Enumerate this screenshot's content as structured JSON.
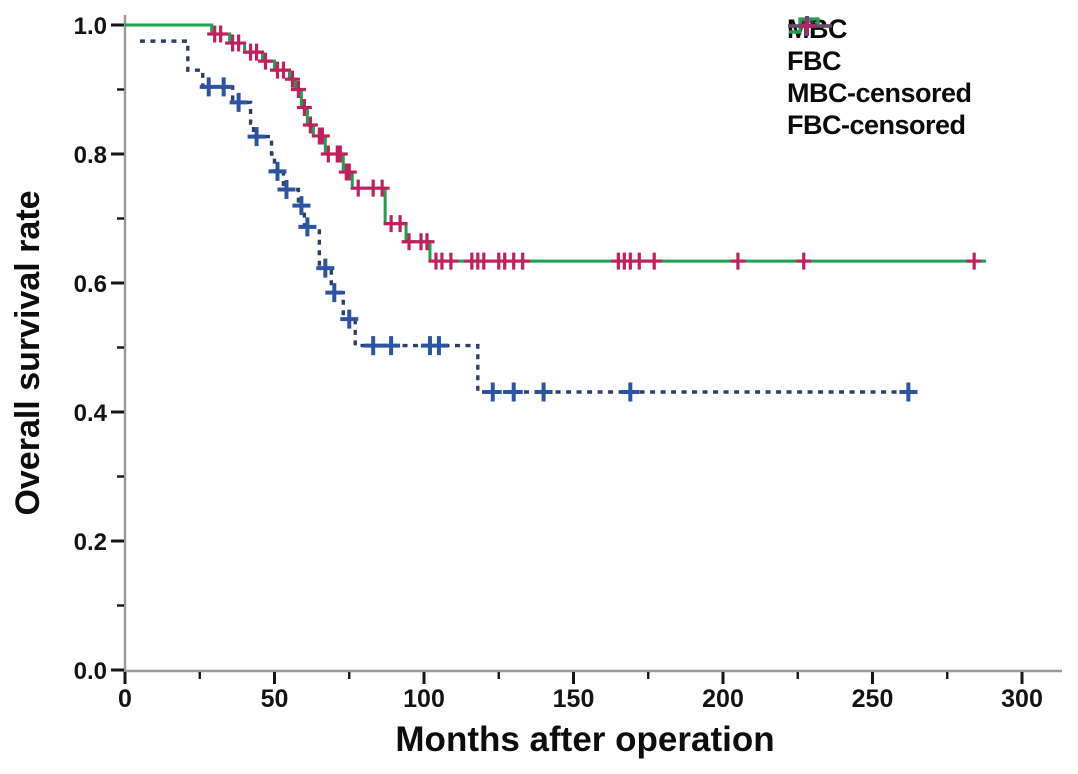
{
  "figure": {
    "background": "#ffffff"
  },
  "legend": {
    "position": "top-right",
    "items": [
      {
        "key": "mbc",
        "label": "MBC"
      },
      {
        "key": "fbc",
        "label": "FBC"
      },
      {
        "key": "mbc_censored",
        "label": "MBC-censored"
      },
      {
        "key": "fbc_censored",
        "label": "FBC-censored"
      }
    ]
  },
  "chart_data": {
    "type": "line",
    "subtype": "kaplan-meier-step",
    "title": "",
    "xlabel": "Months after operation",
    "ylabel": "Overall survival rate",
    "xlim": [
      0,
      313
    ],
    "ylim": [
      0.0,
      1.0
    ],
    "grid": false,
    "legend_position": "top-right",
    "x_ticks": [
      {
        "v": 0,
        "label": "0"
      },
      {
        "v": 50,
        "label": "50"
      },
      {
        "v": 100,
        "label": "100"
      },
      {
        "v": 150,
        "label": "150"
      },
      {
        "v": 200,
        "label": "200"
      },
      {
        "v": 250,
        "label": "250"
      },
      {
        "v": 300,
        "label": "300"
      }
    ],
    "x_minor_ticks": [
      25,
      75,
      125,
      175,
      225,
      275
    ],
    "y_ticks": [
      {
        "v": 0.0,
        "label": "0.0"
      },
      {
        "v": 0.2,
        "label": "0.2"
      },
      {
        "v": 0.4,
        "label": "0.4"
      },
      {
        "v": 0.6,
        "label": "0.6"
      },
      {
        "v": 0.8,
        "label": "0.8"
      },
      {
        "v": 1.0,
        "label": "1.0"
      }
    ],
    "y_minor_ticks": [
      0.1,
      0.3,
      0.5,
      0.7,
      0.9
    ],
    "colors": {
      "fbc": "#1ca24c",
      "mbc": "#2e3f66",
      "mbc_cross": "#2a55a4",
      "fbc_cross": "#c0205e",
      "fbc_censored_legend_line": "#6d4a63"
    },
    "series": [
      {
        "name": "FBC",
        "style": "solid",
        "color": "#1ca24c",
        "points": [
          [
            0,
            1.0
          ],
          [
            29,
            0.986
          ],
          [
            35,
            0.972
          ],
          [
            40,
            0.958
          ],
          [
            46,
            0.944
          ],
          [
            50,
            0.93
          ],
          [
            55,
            0.916
          ],
          [
            57,
            0.9
          ],
          [
            59,
            0.872
          ],
          [
            61,
            0.845
          ],
          [
            63,
            0.828
          ],
          [
            67,
            0.8
          ],
          [
            73,
            0.772
          ],
          [
            76,
            0.747
          ],
          [
            87,
            0.692
          ],
          [
            94,
            0.664
          ],
          [
            102,
            0.634
          ]
        ],
        "end_month": 288
      },
      {
        "name": "MBC",
        "style": "dashed",
        "color": "#2e3f66",
        "points": [
          [
            5,
            0.975
          ],
          [
            21,
            0.93
          ],
          [
            26,
            0.904
          ],
          [
            36,
            0.88
          ],
          [
            42,
            0.848
          ],
          [
            43,
            0.827
          ],
          [
            49,
            0.8
          ],
          [
            50,
            0.773
          ],
          [
            53,
            0.745
          ],
          [
            58,
            0.72
          ],
          [
            60,
            0.687
          ],
          [
            65,
            0.623
          ],
          [
            69,
            0.585
          ],
          [
            73,
            0.544
          ],
          [
            77,
            0.503
          ],
          [
            118,
            0.431
          ]
        ],
        "end_month": 265
      }
    ],
    "censored": [
      {
        "name": "MBC-censored",
        "color": "#2a55a4",
        "marks": [
          [
            28,
            0.904
          ],
          [
            33,
            0.904
          ],
          [
            38,
            0.88
          ],
          [
            44,
            0.827
          ],
          [
            51,
            0.773
          ],
          [
            54,
            0.745
          ],
          [
            59,
            0.72
          ],
          [
            61,
            0.687
          ],
          [
            67,
            0.623
          ],
          [
            70,
            0.585
          ],
          [
            75,
            0.544
          ],
          [
            83,
            0.503
          ],
          [
            89,
            0.503
          ],
          [
            102,
            0.503
          ],
          [
            105,
            0.503
          ],
          [
            123,
            0.431
          ],
          [
            130,
            0.431
          ],
          [
            140,
            0.431
          ],
          [
            169,
            0.431
          ],
          [
            262,
            0.431
          ]
        ]
      },
      {
        "name": "FBC-censored",
        "color": "#c0205e",
        "marks": [
          [
            30,
            0.986
          ],
          [
            32,
            0.986
          ],
          [
            36,
            0.972
          ],
          [
            38,
            0.972
          ],
          [
            42,
            0.958
          ],
          [
            44,
            0.958
          ],
          [
            47,
            0.944
          ],
          [
            51,
            0.93
          ],
          [
            53,
            0.93
          ],
          [
            56,
            0.916
          ],
          [
            58,
            0.9
          ],
          [
            60,
            0.872
          ],
          [
            62,
            0.845
          ],
          [
            65,
            0.828
          ],
          [
            66,
            0.828
          ],
          [
            68,
            0.8
          ],
          [
            71,
            0.8
          ],
          [
            72,
            0.8
          ],
          [
            74,
            0.772
          ],
          [
            75,
            0.772
          ],
          [
            78,
            0.747
          ],
          [
            83,
            0.747
          ],
          [
            86,
            0.747
          ],
          [
            89,
            0.692
          ],
          [
            92,
            0.692
          ],
          [
            95,
            0.664
          ],
          [
            99,
            0.664
          ],
          [
            101,
            0.664
          ],
          [
            104,
            0.634
          ],
          [
            106,
            0.634
          ],
          [
            109,
            0.634
          ],
          [
            116,
            0.634
          ],
          [
            118,
            0.634
          ],
          [
            120,
            0.634
          ],
          [
            125,
            0.634
          ],
          [
            127,
            0.634
          ],
          [
            130,
            0.634
          ],
          [
            133,
            0.634
          ],
          [
            165,
            0.634
          ],
          [
            167,
            0.634
          ],
          [
            169,
            0.634
          ],
          [
            172,
            0.634
          ],
          [
            177,
            0.634
          ],
          [
            205,
            0.634
          ],
          [
            227,
            0.634
          ],
          [
            284,
            0.634
          ]
        ]
      }
    ]
  }
}
